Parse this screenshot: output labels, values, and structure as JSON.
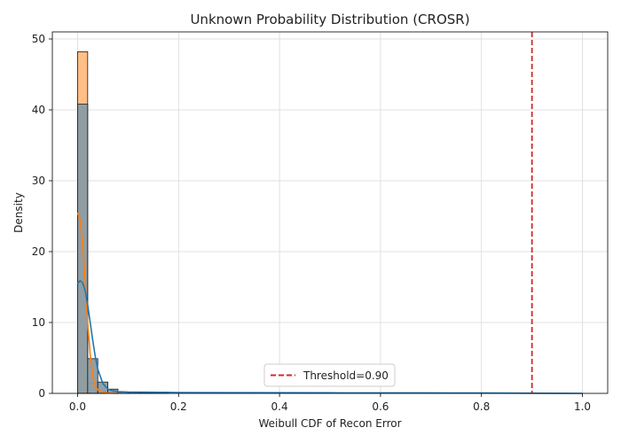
{
  "chart_data": {
    "type": "histogram",
    "title": "Unknown Probability Distribution (CROSR)",
    "xlabel": "Weibull CDF of Recon Error",
    "ylabel": "Density",
    "xlim": [
      -0.05,
      1.05
    ],
    "ylim": [
      0,
      51
    ],
    "x_ticks": [
      0.0,
      0.2,
      0.4,
      0.6,
      0.8,
      1.0
    ],
    "x_tick_labels": [
      "0.0",
      "0.2",
      "0.4",
      "0.6",
      "0.8",
      "1.0"
    ],
    "y_ticks": [
      0,
      10,
      20,
      30,
      40,
      50
    ],
    "y_tick_labels": [
      "0",
      "10",
      "20",
      "30",
      "40",
      "50"
    ],
    "grid": true,
    "bin_width": 0.02,
    "series": [
      {
        "name": "orange-histogram",
        "color": "#ffbf86",
        "bins": [
          {
            "x0": 0.0,
            "x1": 0.02,
            "y": 48.2
          },
          {
            "x0": 0.02,
            "x1": 0.04,
            "y": 1.5
          },
          {
            "x0": 0.04,
            "x1": 0.06,
            "y": 0.3
          },
          {
            "x0": 0.06,
            "x1": 0.08,
            "y": 0.05
          }
        ],
        "kde": [
          [
            0.0,
            25.5
          ],
          [
            0.005,
            24.5
          ],
          [
            0.01,
            21.0
          ],
          [
            0.015,
            15.5
          ],
          [
            0.02,
            10.0
          ],
          [
            0.025,
            5.5
          ],
          [
            0.03,
            2.5
          ],
          [
            0.035,
            1.0
          ],
          [
            0.04,
            0.5
          ],
          [
            0.05,
            0.2
          ],
          [
            0.06,
            0.05
          ],
          [
            0.08,
            0.0
          ]
        ],
        "kde_color": "#ff7f0e"
      },
      {
        "name": "blue-histogram",
        "color": "#8a9ba3",
        "bins": [
          {
            "x0": 0.0,
            "x1": 0.02,
            "y": 40.8
          },
          {
            "x0": 0.02,
            "x1": 0.04,
            "y": 4.9
          },
          {
            "x0": 0.04,
            "x1": 0.06,
            "y": 1.6
          },
          {
            "x0": 0.06,
            "x1": 0.08,
            "y": 0.6
          },
          {
            "x0": 0.08,
            "x1": 0.1,
            "y": 0.2
          },
          {
            "x0": 0.1,
            "x1": 0.12,
            "y": 0.15
          },
          {
            "x0": 0.12,
            "x1": 0.14,
            "y": 0.1
          },
          {
            "x0": 0.14,
            "x1": 0.16,
            "y": 0.1
          },
          {
            "x0": 0.16,
            "x1": 0.18,
            "y": 0.2
          }
        ],
        "kde": [
          [
            0.0,
            15.5
          ],
          [
            0.005,
            15.9
          ],
          [
            0.01,
            15.6
          ],
          [
            0.015,
            14.5
          ],
          [
            0.02,
            12.5
          ],
          [
            0.025,
            10.0
          ],
          [
            0.03,
            7.5
          ],
          [
            0.035,
            5.2
          ],
          [
            0.04,
            3.4
          ],
          [
            0.05,
            1.4
          ],
          [
            0.06,
            0.6
          ],
          [
            0.07,
            0.35
          ],
          [
            0.08,
            0.25
          ],
          [
            0.1,
            0.2
          ],
          [
            0.15,
            0.17
          ],
          [
            0.2,
            0.12
          ],
          [
            0.3,
            0.1
          ],
          [
            0.5,
            0.08
          ],
          [
            0.7,
            0.07
          ],
          [
            0.8,
            0.05
          ],
          [
            0.9,
            0.02
          ],
          [
            1.0,
            0.0
          ]
        ],
        "kde_color": "#1f77b4"
      }
    ],
    "threshold": {
      "x": 0.9,
      "label": "Threshold=0.90",
      "color": "#d62728"
    },
    "legend": {
      "location": "lower-center",
      "entries": [
        "Threshold=0.90"
      ]
    }
  }
}
